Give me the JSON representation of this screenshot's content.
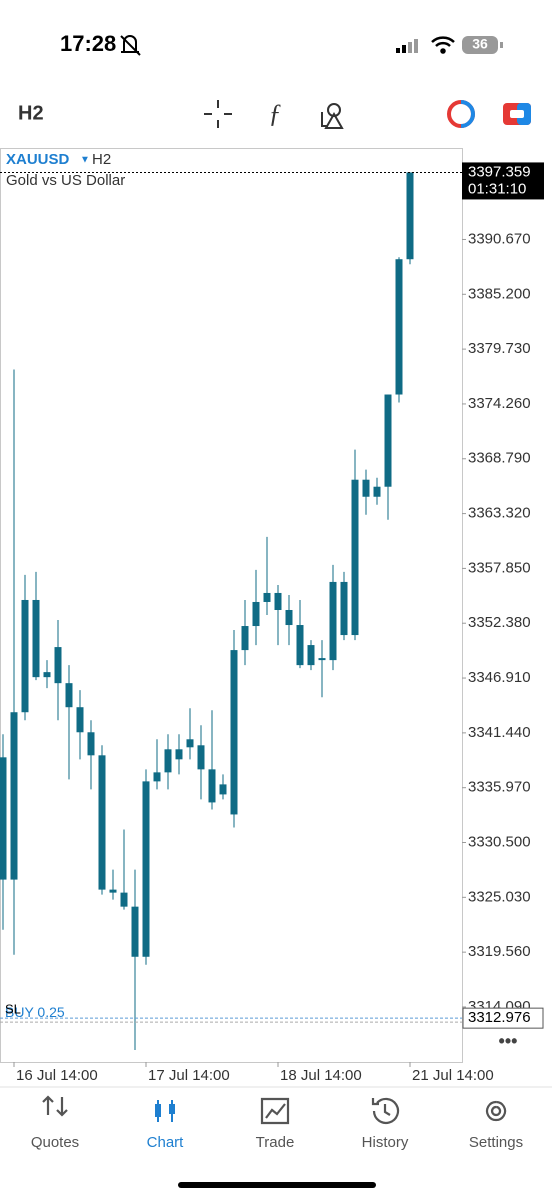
{
  "status_bar": {
    "time": "17:28",
    "battery": "36"
  },
  "toolbar": {
    "timeframe": "H2"
  },
  "chart_data": {
    "type": "candlestick",
    "symbol": "XAUUSD",
    "timeframe": "H2",
    "subtitle": "Gold vs US Dollar",
    "color": "#0f6b85",
    "categories": [
      null,
      "16 Jul 14:00",
      null,
      null,
      null,
      null,
      null,
      null,
      null,
      null,
      null,
      null,
      null,
      "17 Jul 14:00",
      null,
      null,
      null,
      null,
      null,
      null,
      null,
      null,
      null,
      null,
      null,
      "18 Jul 14:00",
      null,
      null,
      null,
      null,
      null,
      null,
      null,
      null,
      null,
      null,
      null,
      "21 Jul 14:00"
    ],
    "candles": [
      [
        3326.8,
        3341.3,
        3321.8,
        3339.0
      ],
      [
        3326.8,
        3377.7,
        3319.3,
        3343.5
      ],
      [
        3343.5,
        3357.2,
        3342.7,
        3354.7
      ],
      [
        3354.7,
        3357.5,
        3346.7,
        3347.0
      ],
      [
        3347.0,
        3348.7,
        3345.9,
        3347.5
      ],
      [
        3350.0,
        3352.7,
        3342.7,
        3346.4
      ],
      [
        3346.4,
        3348.2,
        3336.8,
        3344.0
      ],
      [
        3344.0,
        3345.7,
        3338.8,
        3341.5
      ],
      [
        3341.5,
        3342.7,
        3335.8,
        3339.2
      ],
      [
        3339.2,
        3340.2,
        3325.3,
        3325.8
      ],
      [
        3325.8,
        3327.8,
        3324.8,
        3325.5
      ],
      [
        3325.5,
        3331.8,
        3323.8,
        3324.1
      ],
      [
        3324.1,
        3327.8,
        3309.8,
        3319.1
      ],
      [
        3319.1,
        3337.8,
        3318.3,
        3336.6
      ],
      [
        3336.6,
        3340.8,
        3335.8,
        3337.5
      ],
      [
        3337.5,
        3341.3,
        3335.8,
        3339.8
      ],
      [
        3338.8,
        3341.3,
        3337.3,
        3339.8
      ],
      [
        3340.0,
        3343.9,
        3338.8,
        3340.8
      ],
      [
        3340.2,
        3342.2,
        3334.8,
        3337.8
      ],
      [
        3337.8,
        3343.7,
        3333.8,
        3334.5
      ],
      [
        3336.3,
        3337.3,
        3334.8,
        3335.3
      ],
      [
        3333.3,
        3351.7,
        3332.0,
        3349.7
      ],
      [
        3349.7,
        3354.7,
        3348.2,
        3352.1
      ],
      [
        3352.1,
        3357.7,
        3350.2,
        3354.5
      ],
      [
        3354.5,
        3361.0,
        3353.2,
        3355.4
      ],
      [
        3355.4,
        3356.2,
        3350.2,
        3353.7
      ],
      [
        3353.7,
        3355.2,
        3350.2,
        3352.2
      ],
      [
        3352.2,
        3354.7,
        3347.9,
        3348.2
      ],
      [
        3348.2,
        3350.7,
        3347.7,
        3350.2
      ],
      [
        3348.9,
        3350.7,
        3345.0,
        3348.7
      ],
      [
        3348.7,
        3358.2,
        3347.7,
        3356.5
      ],
      [
        3356.5,
        3357.5,
        3350.7,
        3351.2
      ],
      [
        3351.2,
        3369.7,
        3350.7,
        3366.7
      ],
      [
        3366.7,
        3367.7,
        3363.2,
        3365.0
      ],
      [
        3365.0,
        3366.9,
        3364.2,
        3366.0
      ],
      [
        3366.0,
        3375.2,
        3362.7,
        3375.2
      ],
      [
        3375.2,
        3388.9,
        3374.4,
        3388.7
      ],
      [
        3388.7,
        3397.359,
        3388.2,
        3397.359
      ]
    ],
    "ylim": [
      3308.6,
      3398.6
    ],
    "yticks": [
      {
        "value": 3390.67,
        "label": "3390.670"
      },
      {
        "value": 3385.2,
        "label": "3385.200"
      },
      {
        "value": 3379.73,
        "label": "3379.730"
      },
      {
        "value": 3374.26,
        "label": "3374.260"
      },
      {
        "value": 3368.79,
        "label": "3368.790"
      },
      {
        "value": 3363.32,
        "label": "3363.320"
      },
      {
        "value": 3357.85,
        "label": "3357.850"
      },
      {
        "value": 3352.38,
        "label": "3352.380"
      },
      {
        "value": 3346.91,
        "label": "3346.910"
      },
      {
        "value": 3341.44,
        "label": "3341.440"
      },
      {
        "value": 3335.97,
        "label": "3335.970"
      },
      {
        "value": 3330.5,
        "label": "3330.500"
      },
      {
        "value": 3325.03,
        "label": "3325.030"
      },
      {
        "value": 3319.56,
        "label": "3319.560"
      },
      {
        "value": 3314.09,
        "label": "3314.090"
      }
    ],
    "last_price": 3397.359,
    "timer": "01:31:10",
    "order_line": {
      "label": "BUY 0.25",
      "stop_label": "SL",
      "price": 3312.976
    }
  },
  "tabs": [
    "Quotes",
    "Chart",
    "Trade",
    "History",
    "Settings"
  ],
  "active_tab": 1
}
